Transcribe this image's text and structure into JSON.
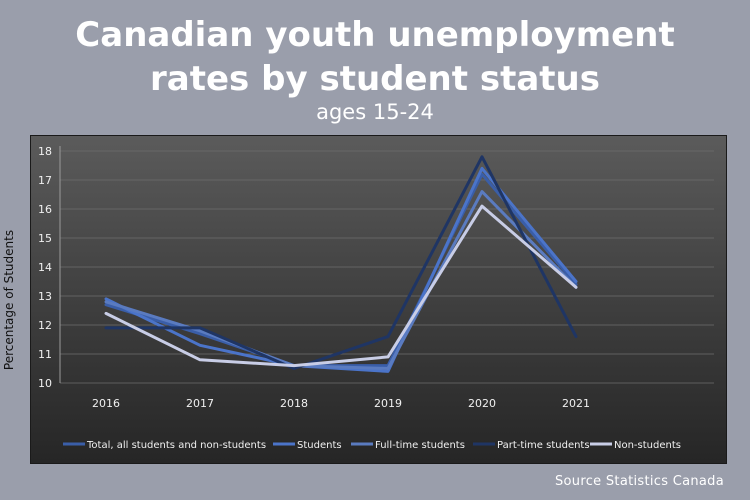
{
  "header": {
    "title_line1": "Canadian youth unemployment",
    "title_line2": "rates by student status",
    "subtitle": "ages 15-24"
  },
  "footer": {
    "source": "Source Statistics Canada"
  },
  "chart_data": {
    "type": "line",
    "title": "Canadian youth unemployment rates by student status",
    "subtitle": "ages 15-24",
    "xlabel": "",
    "ylabel": "Percentage of Students",
    "categories": [
      "2016",
      "2017",
      "2018",
      "2019",
      "2020",
      "2021"
    ],
    "ylim": [
      10,
      18
    ],
    "yticks": [
      "10",
      "11",
      "12",
      "13",
      "14",
      "15",
      "16",
      "17",
      "18"
    ],
    "grid": true,
    "legend_position": "bottom",
    "series": [
      {
        "name": "Total, all students and non-students",
        "color": "#3a5ea8",
        "values": [
          12.7,
          11.7,
          10.6,
          10.6,
          17.2,
          13.4
        ]
      },
      {
        "name": "Students",
        "color": "#4b74c9",
        "values": [
          12.9,
          11.3,
          10.6,
          10.4,
          17.4,
          13.5
        ]
      },
      {
        "name": "Full-time students",
        "color": "#5a7bc0",
        "values": [
          12.8,
          11.8,
          10.6,
          10.5,
          16.6,
          13.3
        ]
      },
      {
        "name": "Part-time students",
        "color": "#1f3564",
        "values": [
          11.9,
          11.9,
          10.5,
          11.6,
          17.8,
          11.6
        ]
      },
      {
        "name": "Non-students",
        "color": "#c8cde6",
        "values": [
          12.4,
          10.8,
          10.6,
          10.9,
          16.1,
          13.3
        ]
      }
    ]
  }
}
